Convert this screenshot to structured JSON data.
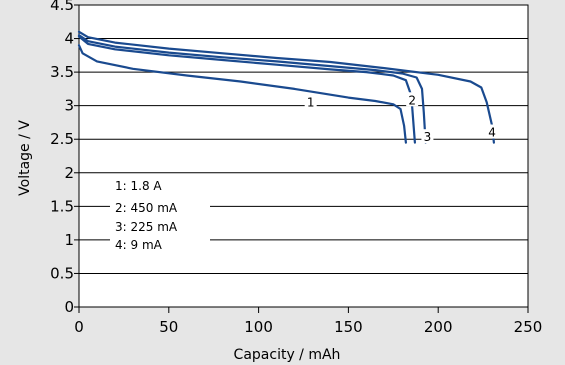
{
  "chart_data": {
    "type": "line",
    "title": "",
    "xlabel": "Capacity / mAh",
    "ylabel": "Voltage / V",
    "xlim": [
      0,
      250
    ],
    "ylim": [
      0,
      4.5
    ],
    "xticks": [
      "0",
      "50",
      "100",
      "150",
      "200",
      "250"
    ],
    "yticks": [
      "0",
      "0.5",
      "1",
      "1.5",
      "2",
      "2.5",
      "3",
      "3.5",
      "4",
      "4.5"
    ],
    "grid": "horizontal",
    "line_color": "#1a4a8f",
    "legend": [
      "1:  1.8 A",
      "2:  450 mA",
      "3:  225 mA",
      "4:  9 mA"
    ],
    "series": [
      {
        "name": "1",
        "points": [
          [
            0,
            3.9
          ],
          [
            2,
            3.78
          ],
          [
            10,
            3.66
          ],
          [
            30,
            3.55
          ],
          [
            60,
            3.45
          ],
          [
            90,
            3.36
          ],
          [
            120,
            3.25
          ],
          [
            150,
            3.12
          ],
          [
            165,
            3.07
          ],
          [
            175,
            3.02
          ],
          [
            179,
            2.95
          ],
          [
            181,
            2.7
          ],
          [
            182,
            2.45
          ]
        ]
      },
      {
        "name": "2",
        "points": [
          [
            0,
            4.03
          ],
          [
            5,
            3.92
          ],
          [
            20,
            3.84
          ],
          [
            50,
            3.75
          ],
          [
            80,
            3.68
          ],
          [
            110,
            3.61
          ],
          [
            140,
            3.54
          ],
          [
            160,
            3.5
          ],
          [
            175,
            3.45
          ],
          [
            182,
            3.38
          ],
          [
            185,
            3.15
          ],
          [
            186,
            2.8
          ],
          [
            187,
            2.45
          ]
        ]
      },
      {
        "name": "3",
        "points": [
          [
            0,
            4.05
          ],
          [
            5,
            3.96
          ],
          [
            20,
            3.88
          ],
          [
            50,
            3.79
          ],
          [
            80,
            3.72
          ],
          [
            110,
            3.66
          ],
          [
            140,
            3.59
          ],
          [
            165,
            3.53
          ],
          [
            180,
            3.48
          ],
          [
            188,
            3.42
          ],
          [
            191,
            3.25
          ],
          [
            192,
            2.9
          ],
          [
            193,
            2.45
          ]
        ]
      },
      {
        "name": "4",
        "points": [
          [
            0,
            4.1
          ],
          [
            5,
            4.02
          ],
          [
            20,
            3.94
          ],
          [
            50,
            3.85
          ],
          [
            80,
            3.78
          ],
          [
            110,
            3.71
          ],
          [
            140,
            3.65
          ],
          [
            170,
            3.56
          ],
          [
            200,
            3.46
          ],
          [
            218,
            3.36
          ],
          [
            224,
            3.27
          ],
          [
            227,
            3.05
          ],
          [
            230,
            2.7
          ],
          [
            231,
            2.45
          ]
        ]
      }
    ],
    "labels": [
      {
        "text": "1",
        "x": 129,
        "y": 3.05
      },
      {
        "text": "2",
        "x": 185.5,
        "y": 3.08
      },
      {
        "text": "3",
        "x": 194,
        "y": 2.53
      },
      {
        "text": "4",
        "x": 230,
        "y": 2.6
      }
    ]
  }
}
